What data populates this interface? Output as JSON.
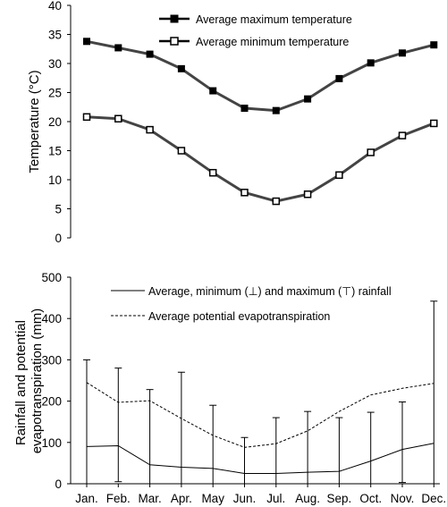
{
  "chart_data": [
    {
      "type": "line",
      "ylabel": "Temperature (°C)",
      "ylim": [
        0,
        40
      ],
      "yticks": [
        "0",
        "5",
        "10",
        "15",
        "20",
        "25",
        "30",
        "35",
        "40"
      ],
      "categories": [
        "Jan.",
        "Feb.",
        "Mar.",
        "Apr.",
        "May",
        "Jun.",
        "Jul.",
        "Aug.",
        "Sep.",
        "Oct.",
        "Nov.",
        "Dec."
      ],
      "legend_position": "top-right",
      "series": [
        {
          "name": "Average maximum temperature",
          "marker": "filled-square",
          "values": [
            33.8,
            32.7,
            31.6,
            29.1,
            25.3,
            22.3,
            21.9,
            23.9,
            27.4,
            30.1,
            31.8,
            33.2
          ]
        },
        {
          "name": "Average minimum temperature",
          "marker": "open-square",
          "values": [
            20.8,
            20.5,
            18.6,
            15.0,
            11.2,
            7.8,
            6.3,
            7.5,
            10.8,
            14.7,
            17.6,
            19.7
          ]
        }
      ]
    },
    {
      "type": "line",
      "ylabel": "Rainfall and potential evapotranspiration (mm)",
      "ylim": [
        0,
        500
      ],
      "yticks": [
        "0",
        "100",
        "200",
        "300",
        "400",
        "500"
      ],
      "categories": [
        "Jan.",
        "Feb.",
        "Mar.",
        "Apr.",
        "May",
        "Jun.",
        "Jul.",
        "Aug.",
        "Sep.",
        "Oct.",
        "Nov.",
        "Dec."
      ],
      "legend_position": "top-right",
      "series": [
        {
          "name": "Average, minimum (⊥) and maximum (⊤) rainfall",
          "style": "solid",
          "values": [
            90,
            92,
            46,
            40,
            37,
            25,
            25,
            28,
            30,
            55,
            83,
            98
          ],
          "min": [
            0,
            5,
            0,
            0,
            0,
            0,
            0,
            0,
            0,
            0,
            3,
            0
          ],
          "max": [
            300,
            280,
            228,
            270,
            190,
            112,
            160,
            175,
            160,
            173,
            198,
            442
          ]
        },
        {
          "name": "Average potential evapotranspiration",
          "style": "dashed",
          "values": [
            245,
            197,
            201,
            158,
            117,
            88,
            97,
            128,
            175,
            215,
            231,
            243
          ]
        }
      ]
    }
  ]
}
